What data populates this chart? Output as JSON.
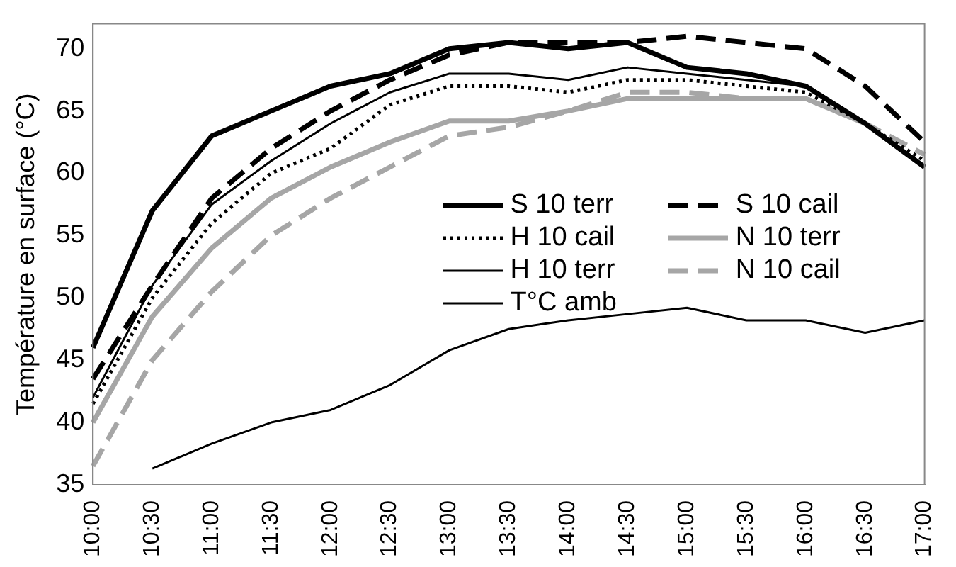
{
  "chart_data": {
    "type": "line",
    "ylabel": "Température en surface (°C)",
    "categories": [
      "10:00",
      "10:30",
      "11:00",
      "11:30",
      "12:00",
      "12:30",
      "13:00",
      "13:30",
      "14:00",
      "14:30",
      "15:00",
      "15:30",
      "16:00",
      "16:30",
      "17:00"
    ],
    "series": [
      {
        "name": "S 10 terr",
        "color": "#000000",
        "line_style": "solid",
        "values": [
          46,
          57,
          63,
          65,
          67,
          68,
          70,
          70.5,
          70,
          70.5,
          68.5,
          68,
          67,
          64,
          60.5
        ]
      },
      {
        "name": "H 10 cail",
        "color": "#000000",
        "line_style": "dotted",
        "values": [
          41.5,
          50,
          56,
          60,
          62,
          65.5,
          67,
          67,
          66.5,
          67.5,
          67.5,
          67,
          66.5,
          64,
          61
        ]
      },
      {
        "name": "H 10 terr",
        "color": "#000000",
        "line_style": "solid",
        "values": [
          42,
          51,
          57.5,
          61,
          64,
          66.5,
          68,
          68,
          67.5,
          68.5,
          68,
          67.5,
          67,
          64,
          60.5
        ]
      },
      {
        "name": "T°C amb",
        "color": "#000000",
        "line_style": "solid",
        "values": [
          null,
          36.3,
          38.3,
          40,
          41,
          43,
          45.8,
          47.5,
          48.2,
          48.7,
          49.2,
          48.2,
          48.2,
          47.2,
          48.2
        ]
      },
      {
        "name": "S 10 cail",
        "color": "#000000",
        "line_style": "dashed",
        "values": [
          43.5,
          51,
          58,
          62,
          65,
          67.5,
          69.5,
          70.5,
          70.5,
          70.5,
          71,
          70.5,
          70,
          67,
          62.5
        ]
      },
      {
        "name": "N 10 terr",
        "color": "#a6a6a6",
        "line_style": "solid",
        "values": [
          40,
          48.5,
          54,
          58,
          60.5,
          62.5,
          64.2,
          64.2,
          65,
          66,
          66,
          66,
          66,
          64,
          60.5
        ]
      },
      {
        "name": "N 10 cail",
        "color": "#a6a6a6",
        "line_style": "dashed",
        "values": [
          36.5,
          45,
          50.5,
          55,
          58,
          60.5,
          63,
          63.7,
          65,
          66.5,
          66.5,
          66,
          66,
          64,
          61.5
        ]
      }
    ],
    "ylim": [
      35,
      72
    ],
    "yticks": [
      35,
      40,
      45,
      50,
      55,
      60,
      65,
      70
    ],
    "grid": false,
    "legend": "right",
    "marker": "none"
  }
}
